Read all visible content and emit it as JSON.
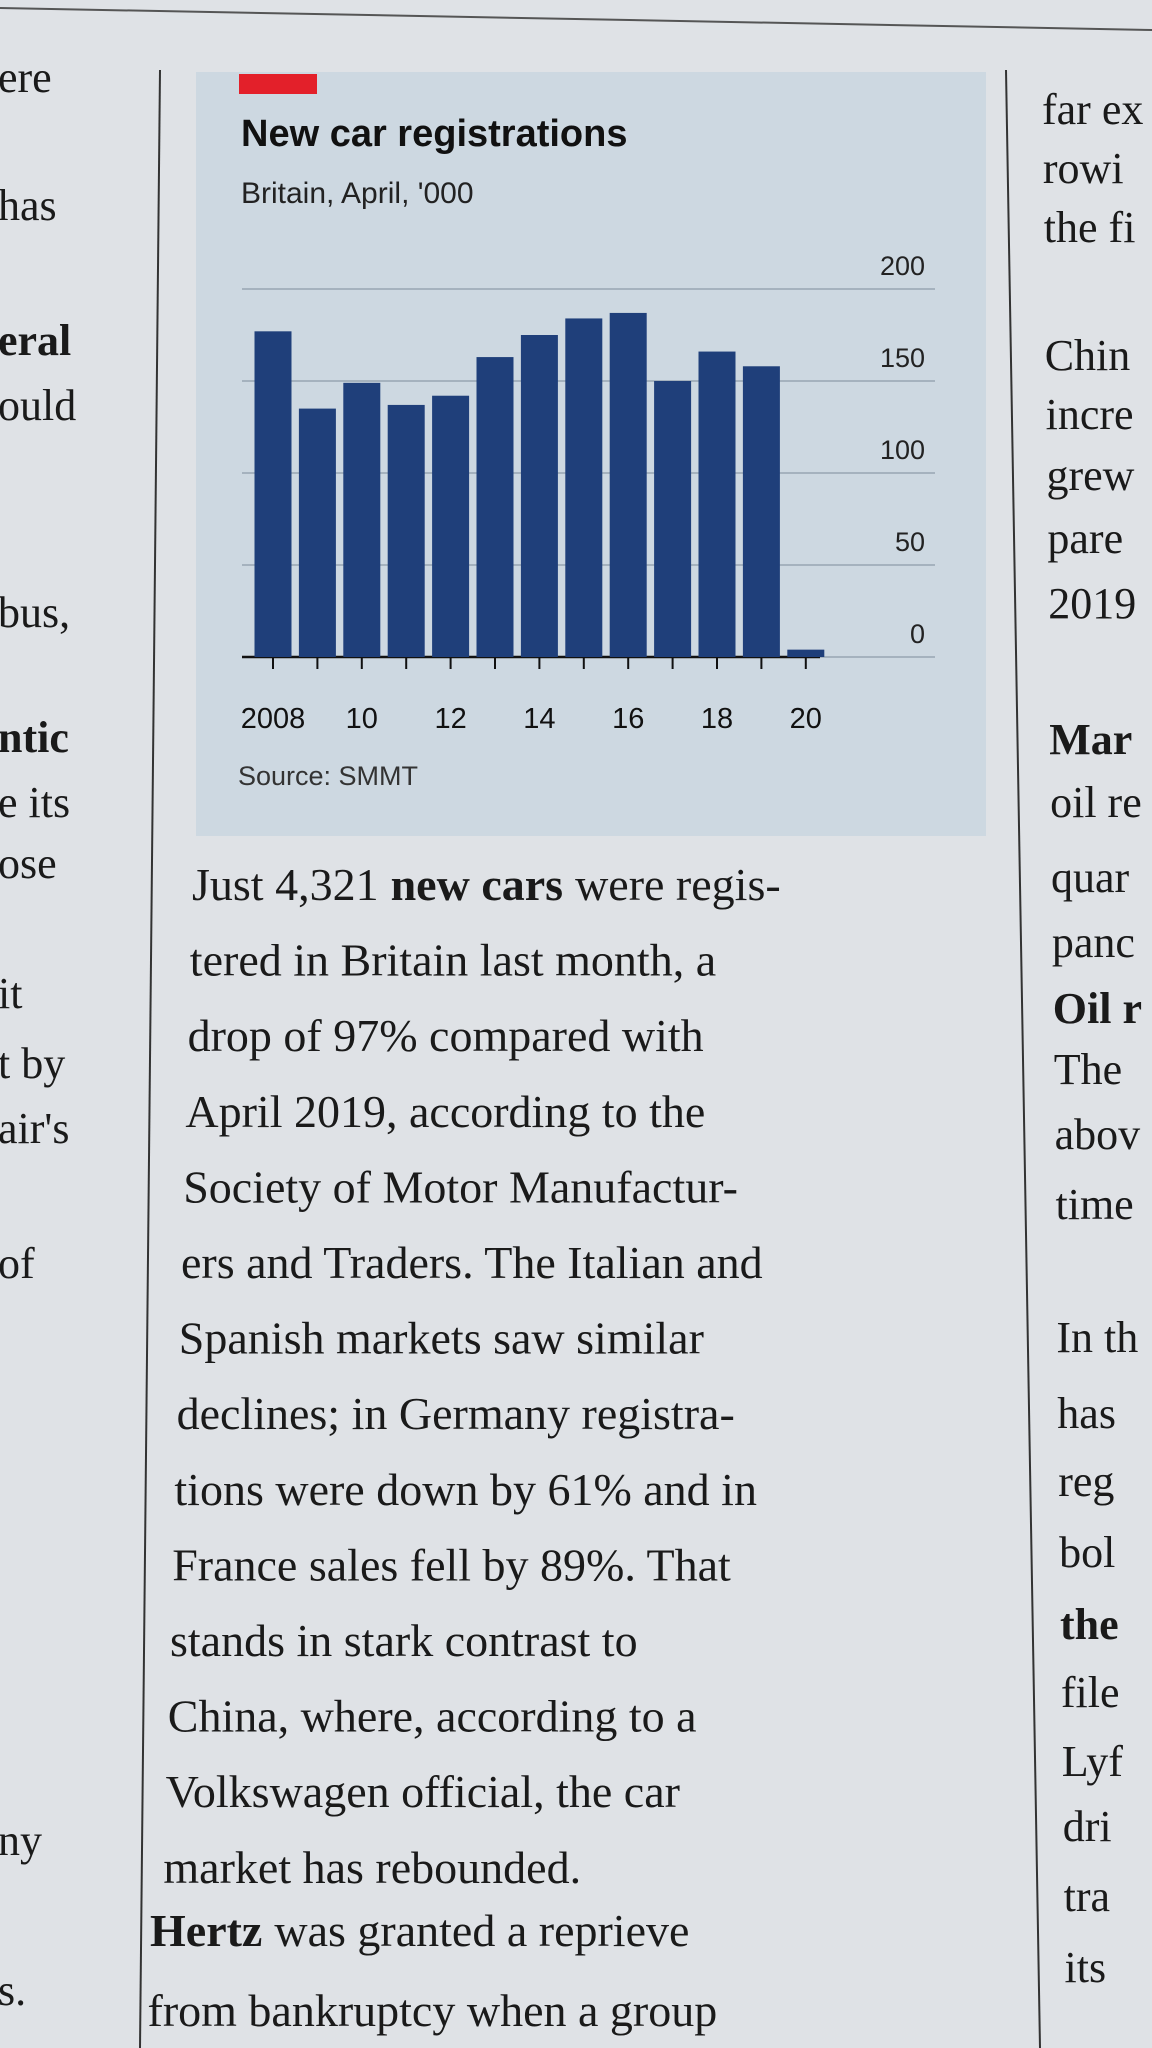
{
  "chart_data": {
    "type": "bar",
    "title": "New car registrations",
    "subtitle": "Britain, April, '000",
    "source": "Source: SMMT",
    "categories": [
      "2008",
      null,
      "10",
      null,
      "12",
      null,
      "14",
      null,
      "16",
      null,
      "18",
      null,
      "20"
    ],
    "values": [
      177,
      135,
      149,
      137,
      142,
      163,
      175,
      184,
      187,
      150,
      166,
      158,
      4
    ],
    "color": "#1f3f7a",
    "ylim": [
      0,
      200
    ],
    "yticks": [
      0,
      50,
      100,
      150,
      200
    ],
    "grid": true,
    "y_axis_side": "right"
  },
  "story1": {
    "lines": [
      {
        "before": "Just 4,321",
        "bold": "new cars",
        "after": "were regis-"
      },
      "tered in Britain last month, a",
      "drop of 97% compared with",
      "April 2019, according to the",
      "Society of Motor Manufactur-",
      "ers and Traders. The Italian and",
      "Spanish markets saw similar",
      "declines; in Germany registra-",
      "tions were down by 61% and in",
      "France sales fell by 89%. That",
      "stands in stark contrast to",
      "China, where, according to a",
      "Volkswagen official, the car",
      "market has rebounded."
    ]
  },
  "story2": {
    "lines": [
      {
        "bold": "Hertz",
        "after": "was granted a reprieve"
      },
      "from bankruptcy when a group"
    ]
  },
  "left_column": [
    "ere",
    "has",
    "eral",
    "ould",
    "bus,",
    "ntic",
    "e its",
    "ose",
    "it",
    "t by",
    "air's",
    "of",
    "ny",
    "s."
  ],
  "right_column": [
    "far ex",
    "rowi",
    "the fi",
    "Chin",
    "incre",
    "grew",
    "pare",
    "2019",
    "Mar",
    "oil re",
    "quar",
    "panc",
    "Oil r",
    "The",
    "abov",
    "time",
    "In th",
    "has",
    "reg",
    "bol",
    "the",
    "file",
    "Lyf",
    "dri",
    "tra",
    "its"
  ]
}
